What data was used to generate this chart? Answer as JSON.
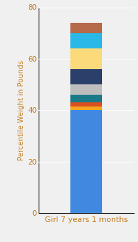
{
  "category": "Girl 7 years 1 months",
  "segments": [
    {
      "value": 40,
      "color": "#4189E0"
    },
    {
      "value": 1.5,
      "color": "#F5A623"
    },
    {
      "value": 1.5,
      "color": "#D94F1E"
    },
    {
      "value": 3.0,
      "color": "#1A7A8A"
    },
    {
      "value": 4.0,
      "color": "#BEBEBE"
    },
    {
      "value": 6.0,
      "color": "#2B3F6B"
    },
    {
      "value": 8.0,
      "color": "#FADA7A"
    },
    {
      "value": 6.0,
      "color": "#29B8E8"
    },
    {
      "value": 4.0,
      "color": "#B56A4A"
    }
  ],
  "ylabel": "Percentile Weight in Pounds",
  "ylim": [
    0,
    80
  ],
  "yticks": [
    0,
    20,
    40,
    60,
    80
  ],
  "background_color": "#F0F0F0",
  "bar_width": 0.4,
  "ylabel_fontsize": 7.5,
  "xlabel_fontsize": 8.0,
  "tick_fontsize": 7.5,
  "ylabel_color": "#C47A1A",
  "xlabel_color": "#C47A1A",
  "tick_color": "#C47A1A",
  "grid_color": "#FFFFFF",
  "spine_color": "#000000"
}
